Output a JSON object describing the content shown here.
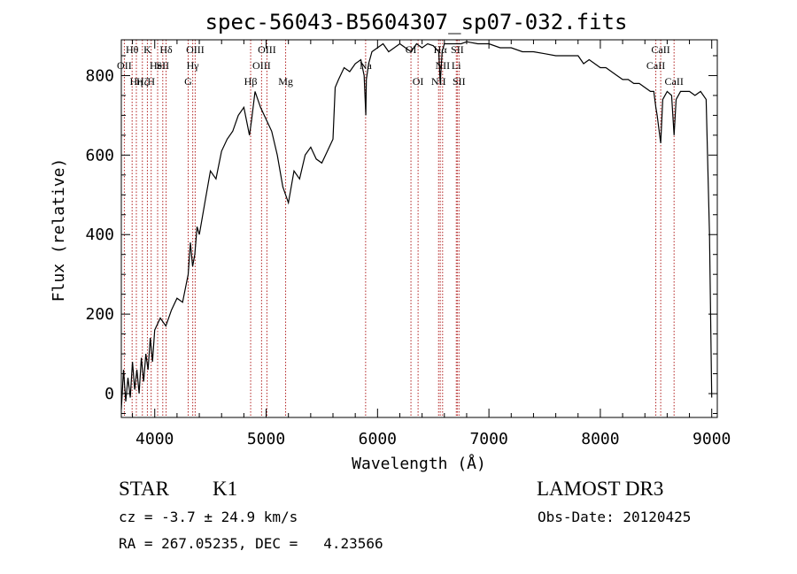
{
  "chart_data": {
    "type": "line",
    "title": "spec-56043-B5604307_sp07-032.fits",
    "xlabel": "Wavelength (Å)",
    "ylabel": "Flux (relative)",
    "xlim": [
      3700,
      9050
    ],
    "ylim": [
      -60,
      890
    ],
    "x_ticks": [
      4000,
      5000,
      6000,
      7000,
      8000,
      9000
    ],
    "x_tick_labels": [
      "4000",
      "5000",
      "6000",
      "7000",
      "8000",
      "9000"
    ],
    "y_ticks": [
      0,
      200,
      400,
      600,
      800
    ],
    "y_tick_labels": [
      "0",
      "200",
      "400",
      "600",
      "800"
    ],
    "grid": false,
    "series": [
      {
        "x": [
          3700,
          3720,
          3740,
          3760,
          3780,
          3800,
          3820,
          3840,
          3860,
          3880,
          3900,
          3920,
          3940,
          3960,
          3980,
          4000,
          4050,
          4100,
          4150,
          4200,
          4250,
          4300,
          4320,
          4340,
          4360,
          4380,
          4400,
          4450,
          4500,
          4550,
          4600,
          4650,
          4700,
          4750,
          4800,
          4850,
          4870,
          4900,
          4950,
          5000,
          5050,
          5100,
          5150,
          5200,
          5250,
          5300,
          5350,
          5400,
          5450,
          5500,
          5550,
          5600,
          5620,
          5650,
          5700,
          5750,
          5800,
          5850,
          5880,
          5895,
          5900,
          5920,
          5950,
          6000,
          6050,
          6100,
          6150,
          6200,
          6250,
          6300,
          6350,
          6400,
          6450,
          6500,
          6550,
          6563,
          6580,
          6600,
          6650,
          6700,
          6750,
          6800,
          6900,
          7000,
          7100,
          7200,
          7300,
          7400,
          7500,
          7600,
          7700,
          7800,
          7850,
          7900,
          7950,
          8000,
          8050,
          8100,
          8150,
          8200,
          8250,
          8300,
          8350,
          8400,
          8450,
          8480,
          8498,
          8510,
          8542,
          8560,
          8600,
          8640,
          8662,
          8680,
          8720,
          8760,
          8800,
          8850,
          8900,
          8950,
          8980,
          9000
        ],
        "y": [
          -40,
          60,
          -20,
          40,
          -10,
          80,
          10,
          60,
          0,
          90,
          30,
          100,
          60,
          140,
          80,
          160,
          190,
          170,
          210,
          240,
          230,
          300,
          380,
          320,
          350,
          420,
          400,
          480,
          560,
          540,
          610,
          640,
          660,
          700,
          720,
          650,
          690,
          760,
          720,
          690,
          660,
          600,
          520,
          480,
          560,
          540,
          600,
          620,
          590,
          580,
          610,
          640,
          770,
          790,
          820,
          810,
          830,
          840,
          800,
          700,
          790,
          830,
          860,
          870,
          880,
          860,
          870,
          880,
          870,
          860,
          880,
          870,
          880,
          875,
          860,
          780,
          860,
          880,
          880,
          880,
          880,
          885,
          880,
          880,
          870,
          870,
          860,
          860,
          855,
          850,
          850,
          850,
          830,
          840,
          830,
          820,
          820,
          810,
          800,
          790,
          790,
          780,
          780,
          770,
          760,
          760,
          720,
          700,
          630,
          740,
          760,
          750,
          650,
          740,
          760,
          760,
          760,
          750,
          760,
          740,
          400,
          -10
        ]
      }
    ],
    "line_labels": [
      {
        "x": 3797,
        "label": "Hθ",
        "row": 0
      },
      {
        "x": 3727,
        "label": "OII",
        "row": 1
      },
      {
        "x": 3835,
        "label": "Hη",
        "row": 2
      },
      {
        "x": 3889,
        "label": "Hζ",
        "row": 2
      },
      {
        "x": 3934,
        "label": "K",
        "row": 0
      },
      {
        "x": 3968,
        "label": "H",
        "row": 2
      },
      {
        "x": 4026,
        "label": "HeI",
        "row": 1
      },
      {
        "x": 4072,
        "label": "SII",
        "row": 1
      },
      {
        "x": 4102,
        "label": "Hδ",
        "row": 0
      },
      {
        "x": 4300,
        "label": "G",
        "row": 2
      },
      {
        "x": 4341,
        "label": "Hγ",
        "row": 1
      },
      {
        "x": 4363,
        "label": "OIII",
        "row": 0
      },
      {
        "x": 4861,
        "label": "Hβ",
        "row": 2
      },
      {
        "x": 4959,
        "label": "OIII",
        "row": 1
      },
      {
        "x": 5007,
        "label": "OIII",
        "row": 0
      },
      {
        "x": 5175,
        "label": "Mg",
        "row": 2
      },
      {
        "x": 5893,
        "label": "Na",
        "row": 1
      },
      {
        "x": 6300,
        "label": "OI",
        "row": 0
      },
      {
        "x": 6364,
        "label": "OI",
        "row": 2
      },
      {
        "x": 6548,
        "label": "NII",
        "row": 2
      },
      {
        "x": 6563,
        "label": "Hα",
        "row": 0
      },
      {
        "x": 6584,
        "label": "NII",
        "row": 1
      },
      {
        "x": 6707,
        "label": "Li",
        "row": 1
      },
      {
        "x": 6716,
        "label": "SII",
        "row": 0
      },
      {
        "x": 6731,
        "label": "SII",
        "row": 2
      },
      {
        "x": 8498,
        "label": "CaII",
        "row": 1
      },
      {
        "x": 8542,
        "label": "CaII",
        "row": 0
      },
      {
        "x": 8662,
        "label": "CaII",
        "row": 2
      }
    ]
  },
  "footer": {
    "object_class": "STAR",
    "subclass": "K1",
    "survey": "LAMOST DR3",
    "cz": "cz = -3.7 ± 24.9 km/s",
    "obs_date": "Obs-Date: 20120425",
    "coords": "RA = 267.05235, DEC =   4.23566"
  },
  "colors": {
    "line_marker": "#b22222",
    "spectrum": "#000000"
  }
}
